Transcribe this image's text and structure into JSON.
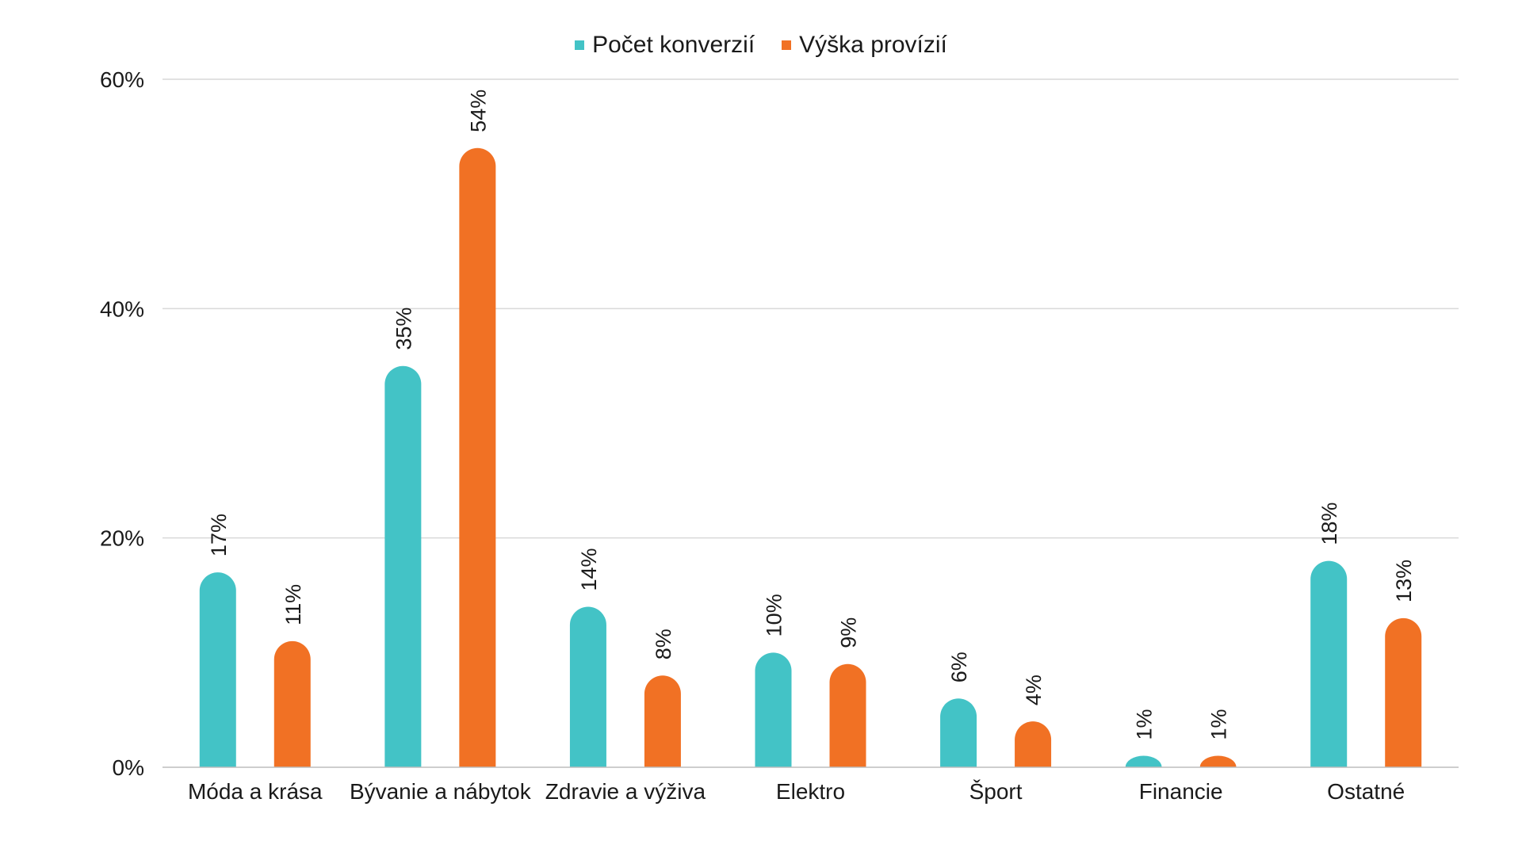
{
  "chart_data": {
    "type": "bar",
    "categories": [
      "Móda a krása",
      "Bývanie a nábytok",
      "Zdravie a výživa",
      "Elektro",
      "Šport",
      "Financie",
      "Ostatné"
    ],
    "series": [
      {
        "name": "Počet konverzií",
        "color": "#43C3C6",
        "values": [
          17,
          35,
          14,
          10,
          6,
          1,
          18
        ],
        "labels": [
          "17%",
          "35%",
          "14%",
          "10%",
          "6%",
          "1%",
          "18%"
        ]
      },
      {
        "name": "Výška provízií",
        "color": "#F17124",
        "values": [
          11,
          54,
          8,
          9,
          4,
          1,
          13
        ],
        "labels": [
          "11%",
          "54%",
          "8%",
          "9%",
          "4%",
          "1%",
          "13%"
        ]
      }
    ],
    "ylim": [
      0,
      60
    ],
    "yticks": [
      0,
      20,
      40,
      60
    ],
    "ytick_labels": [
      "0%",
      "20%",
      "40%",
      "60%"
    ],
    "grid": true,
    "legend_position": "top-center",
    "title": "",
    "xlabel": "",
    "ylabel": ""
  }
}
